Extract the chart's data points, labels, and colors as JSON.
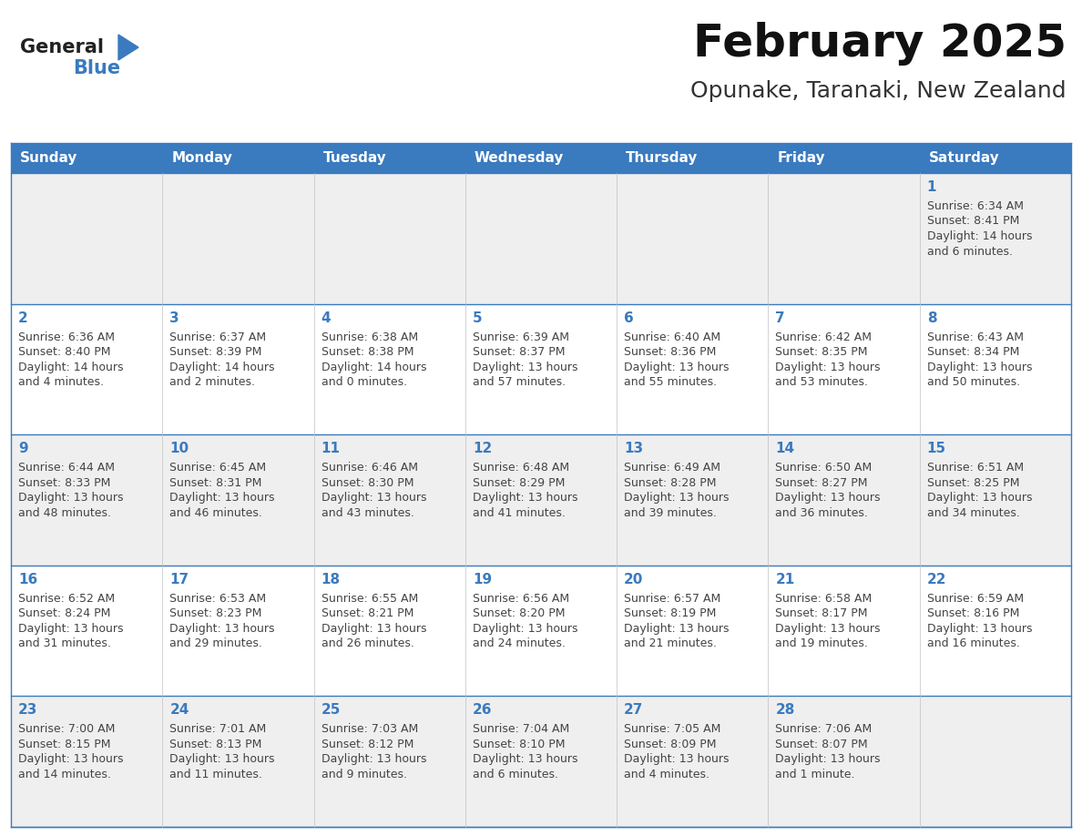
{
  "title": "February 2025",
  "subtitle": "Opunake, Taranaki, New Zealand",
  "header_color": "#3a7abf",
  "header_text_color": "#ffffff",
  "header_days": [
    "Sunday",
    "Monday",
    "Tuesday",
    "Wednesday",
    "Thursday",
    "Friday",
    "Saturday"
  ],
  "bg_color": "#ffffff",
  "row_colors": [
    "#efefef",
    "#ffffff",
    "#efefef",
    "#ffffff",
    "#efefef"
  ],
  "cell_border_color": "#3a7abf",
  "day_number_color": "#3a7abf",
  "text_color": "#444444",
  "logo_general_color": "#222222",
  "logo_blue_color": "#3a7abf",
  "calendar_data": [
    [
      null,
      null,
      null,
      null,
      null,
      null,
      {
        "day": "1",
        "sunrise": "6:34 AM",
        "sunset": "8:41 PM",
        "daylight_line1": "Daylight: 14 hours",
        "daylight_line2": "and 6 minutes."
      }
    ],
    [
      {
        "day": "2",
        "sunrise": "6:36 AM",
        "sunset": "8:40 PM",
        "daylight_line1": "Daylight: 14 hours",
        "daylight_line2": "and 4 minutes."
      },
      {
        "day": "3",
        "sunrise": "6:37 AM",
        "sunset": "8:39 PM",
        "daylight_line1": "Daylight: 14 hours",
        "daylight_line2": "and 2 minutes."
      },
      {
        "day": "4",
        "sunrise": "6:38 AM",
        "sunset": "8:38 PM",
        "daylight_line1": "Daylight: 14 hours",
        "daylight_line2": "and 0 minutes."
      },
      {
        "day": "5",
        "sunrise": "6:39 AM",
        "sunset": "8:37 PM",
        "daylight_line1": "Daylight: 13 hours",
        "daylight_line2": "and 57 minutes."
      },
      {
        "day": "6",
        "sunrise": "6:40 AM",
        "sunset": "8:36 PM",
        "daylight_line1": "Daylight: 13 hours",
        "daylight_line2": "and 55 minutes."
      },
      {
        "day": "7",
        "sunrise": "6:42 AM",
        "sunset": "8:35 PM",
        "daylight_line1": "Daylight: 13 hours",
        "daylight_line2": "and 53 minutes."
      },
      {
        "day": "8",
        "sunrise": "6:43 AM",
        "sunset": "8:34 PM",
        "daylight_line1": "Daylight: 13 hours",
        "daylight_line2": "and 50 minutes."
      }
    ],
    [
      {
        "day": "9",
        "sunrise": "6:44 AM",
        "sunset": "8:33 PM",
        "daylight_line1": "Daylight: 13 hours",
        "daylight_line2": "and 48 minutes."
      },
      {
        "day": "10",
        "sunrise": "6:45 AM",
        "sunset": "8:31 PM",
        "daylight_line1": "Daylight: 13 hours",
        "daylight_line2": "and 46 minutes."
      },
      {
        "day": "11",
        "sunrise": "6:46 AM",
        "sunset": "8:30 PM",
        "daylight_line1": "Daylight: 13 hours",
        "daylight_line2": "and 43 minutes."
      },
      {
        "day": "12",
        "sunrise": "6:48 AM",
        "sunset": "8:29 PM",
        "daylight_line1": "Daylight: 13 hours",
        "daylight_line2": "and 41 minutes."
      },
      {
        "day": "13",
        "sunrise": "6:49 AM",
        "sunset": "8:28 PM",
        "daylight_line1": "Daylight: 13 hours",
        "daylight_line2": "and 39 minutes."
      },
      {
        "day": "14",
        "sunrise": "6:50 AM",
        "sunset": "8:27 PM",
        "daylight_line1": "Daylight: 13 hours",
        "daylight_line2": "and 36 minutes."
      },
      {
        "day": "15",
        "sunrise": "6:51 AM",
        "sunset": "8:25 PM",
        "daylight_line1": "Daylight: 13 hours",
        "daylight_line2": "and 34 minutes."
      }
    ],
    [
      {
        "day": "16",
        "sunrise": "6:52 AM",
        "sunset": "8:24 PM",
        "daylight_line1": "Daylight: 13 hours",
        "daylight_line2": "and 31 minutes."
      },
      {
        "day": "17",
        "sunrise": "6:53 AM",
        "sunset": "8:23 PM",
        "daylight_line1": "Daylight: 13 hours",
        "daylight_line2": "and 29 minutes."
      },
      {
        "day": "18",
        "sunrise": "6:55 AM",
        "sunset": "8:21 PM",
        "daylight_line1": "Daylight: 13 hours",
        "daylight_line2": "and 26 minutes."
      },
      {
        "day": "19",
        "sunrise": "6:56 AM",
        "sunset": "8:20 PM",
        "daylight_line1": "Daylight: 13 hours",
        "daylight_line2": "and 24 minutes."
      },
      {
        "day": "20",
        "sunrise": "6:57 AM",
        "sunset": "8:19 PM",
        "daylight_line1": "Daylight: 13 hours",
        "daylight_line2": "and 21 minutes."
      },
      {
        "day": "21",
        "sunrise": "6:58 AM",
        "sunset": "8:17 PM",
        "daylight_line1": "Daylight: 13 hours",
        "daylight_line2": "and 19 minutes."
      },
      {
        "day": "22",
        "sunrise": "6:59 AM",
        "sunset": "8:16 PM",
        "daylight_line1": "Daylight: 13 hours",
        "daylight_line2": "and 16 minutes."
      }
    ],
    [
      {
        "day": "23",
        "sunrise": "7:00 AM",
        "sunset": "8:15 PM",
        "daylight_line1": "Daylight: 13 hours",
        "daylight_line2": "and 14 minutes."
      },
      {
        "day": "24",
        "sunrise": "7:01 AM",
        "sunset": "8:13 PM",
        "daylight_line1": "Daylight: 13 hours",
        "daylight_line2": "and 11 minutes."
      },
      {
        "day": "25",
        "sunrise": "7:03 AM",
        "sunset": "8:12 PM",
        "daylight_line1": "Daylight: 13 hours",
        "daylight_line2": "and 9 minutes."
      },
      {
        "day": "26",
        "sunrise": "7:04 AM",
        "sunset": "8:10 PM",
        "daylight_line1": "Daylight: 13 hours",
        "daylight_line2": "and 6 minutes."
      },
      {
        "day": "27",
        "sunrise": "7:05 AM",
        "sunset": "8:09 PM",
        "daylight_line1": "Daylight: 13 hours",
        "daylight_line2": "and 4 minutes."
      },
      {
        "day": "28",
        "sunrise": "7:06 AM",
        "sunset": "8:07 PM",
        "daylight_line1": "Daylight: 13 hours",
        "daylight_line2": "and 1 minute."
      },
      null
    ]
  ],
  "num_rows": 5,
  "num_cols": 7,
  "title_fontsize": 36,
  "subtitle_fontsize": 18,
  "header_fontsize": 11,
  "day_num_fontsize": 11,
  "cell_text_fontsize": 9
}
